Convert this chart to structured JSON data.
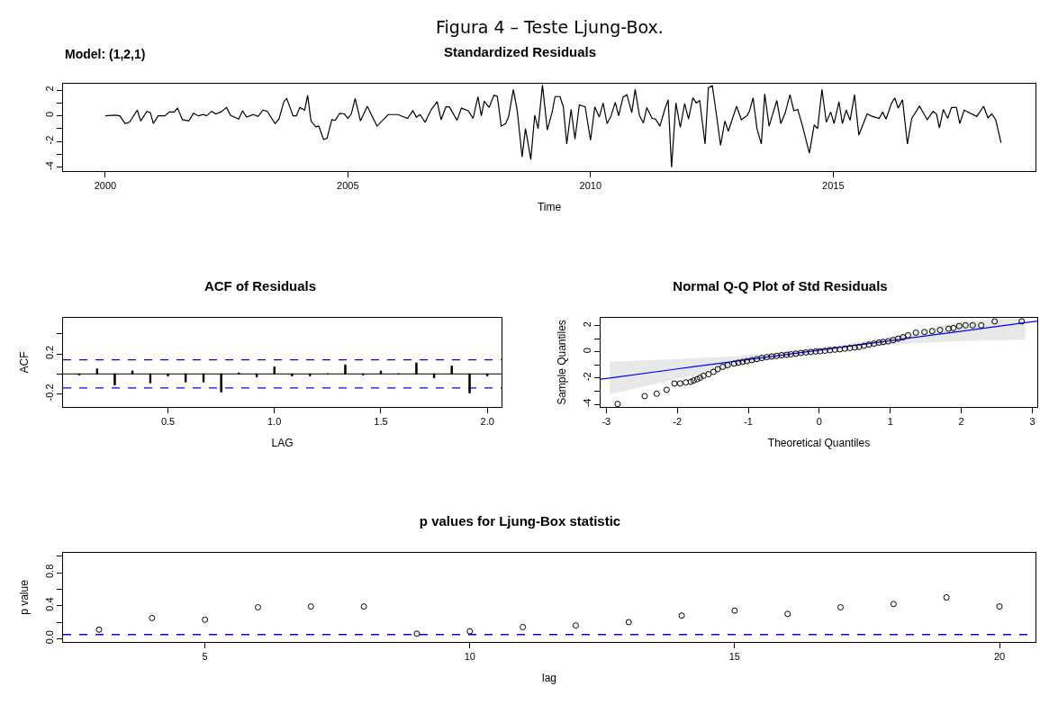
{
  "chart_data": [
    {
      "type": "line",
      "title": "Standardized Residuals",
      "xlabel": "Time",
      "annotations": [
        "Figura 4 – Teste Ljung-Box.",
        "Model: (1,2,1)"
      ],
      "xlim": [
        1999.13,
        2019.17
      ],
      "xticks": [
        2000,
        2005,
        2010,
        2015
      ],
      "ylim": [
        -4.3,
        2.5
      ],
      "yticks": [
        -4,
        {
          "value": -3,
          "label": null
        },
        -2,
        {
          "value": -1,
          "label": null
        },
        0,
        {
          "value": 1,
          "label": null
        },
        2
      ],
      "grid": false,
      "marker": "none",
      "line_style": "solid",
      "series": [
        {
          "color": "#000000",
          "x": [
            2000.0,
            2000.2,
            2000.3,
            2000.41,
            2000.5,
            2000.66,
            2000.73,
            2000.86,
            2000.93,
            2000.99,
            2001.09,
            2001.23,
            2001.32,
            2001.42,
            2001.49,
            2001.59,
            2001.72,
            2001.82,
            2001.92,
            2002.02,
            2002.09,
            2002.19,
            2002.28,
            2002.38,
            2002.5,
            2002.58,
            2002.75,
            2002.83,
            2002.91,
            2003.05,
            2003.15,
            2003.25,
            2003.34,
            2003.5,
            2003.58,
            2003.68,
            2003.74,
            2003.87,
            2003.94,
            2004.01,
            2004.11,
            2004.17,
            2004.24,
            2004.34,
            2004.4,
            2004.5,
            2004.57,
            2004.67,
            2004.74,
            2004.83,
            2004.93,
            2005.0,
            2005.07,
            2005.15,
            2005.26,
            2005.4,
            2005.6,
            2005.83,
            2006.03,
            2006.23,
            2006.34,
            2006.41,
            2006.49,
            2006.59,
            2006.72,
            2006.84,
            2006.92,
            2007.02,
            2007.09,
            2007.25,
            2007.34,
            2007.48,
            2007.58,
            2007.68,
            2007.75,
            2007.81,
            2007.91,
            2008.01,
            2008.08,
            2008.16,
            2008.25,
            2008.31,
            2008.41,
            2008.49,
            2008.59,
            2008.66,
            2008.77,
            2008.85,
            2008.92,
            2009.01,
            2009.11,
            2009.21,
            2009.27,
            2009.37,
            2009.44,
            2009.51,
            2009.6,
            2009.68,
            2009.77,
            2009.89,
            2010.0,
            2010.09,
            2010.18,
            2010.26,
            2010.34,
            2010.42,
            2010.51,
            2010.58,
            2010.67,
            2010.75,
            2010.85,
            2010.92,
            2011.01,
            2011.09,
            2011.16,
            2011.27,
            2011.34,
            2011.43,
            2011.53,
            2011.6,
            2011.67,
            2011.76,
            2011.85,
            2011.94,
            2012.02,
            2012.11,
            2012.18,
            2012.25,
            2012.36,
            2012.43,
            2012.51,
            2012.58,
            2012.68,
            2012.77,
            2012.84,
            2013.01,
            2013.11,
            2013.22,
            2013.27,
            2013.35,
            2013.43,
            2013.52,
            2013.59,
            2013.68,
            2013.84,
            2013.92,
            2014.01,
            2014.11,
            2014.19,
            2014.27,
            2014.37,
            2014.51,
            2014.61,
            2014.68,
            2014.77,
            2014.86,
            2014.95,
            2015.02,
            2015.12,
            2015.19,
            2015.27,
            2015.35,
            2015.44,
            2015.53,
            2015.7,
            2015.81,
            2015.95,
            2016.02,
            2016.09,
            2016.2,
            2016.27,
            2016.34,
            2016.43,
            2016.53,
            2016.62,
            2016.78,
            2016.94,
            2017.06,
            2017.13,
            2017.19,
            2017.27,
            2017.36,
            2017.44,
            2017.54,
            2017.61,
            2017.7,
            2017.96,
            2018.1,
            2018.19,
            2018.27,
            2018.35,
            2018.46
          ],
          "values": [
            0,
            0.05,
            0,
            -0.6,
            -0.5,
            0.45,
            -0.4,
            0.35,
            0.25,
            -0.6,
            0,
            0,
            0.3,
            0.3,
            0.6,
            -0.3,
            -0.4,
            0.2,
            0,
            0.1,
            0,
            0.35,
            0.15,
            0.3,
            0.65,
            0.05,
            -0.25,
            0.4,
            -0.1,
            0.1,
            -0.05,
            0.45,
            0.35,
            -0.6,
            -0.25,
            1.1,
            1.35,
            0,
            0,
            0.65,
            0.45,
            1.6,
            -0.4,
            -0.85,
            -0.8,
            -1.85,
            -1.75,
            -0.3,
            -0.35,
            0.2,
            0.15,
            -0.2,
            0.15,
            1.35,
            -0.4,
            0.75,
            -0.8,
            0.1,
            0.1,
            -0.2,
            0.4,
            -0.1,
            0.1,
            -0.5,
            0.5,
            1.1,
            -0.3,
            0.7,
            0.7,
            -0.35,
            0.6,
            0.4,
            -0.2,
            1.5,
            0,
            1.15,
            0.65,
            1.6,
            1.5,
            -0.8,
            -0.6,
            -0.1,
            2.05,
            0.4,
            -3.2,
            -1.0,
            -3.4,
            0.05,
            -1.0,
            2.4,
            -1.1,
            0.3,
            1.5,
            1.5,
            0.7,
            -2.2,
            0.5,
            -1.8,
            0.85,
            0.7,
            -1.9,
            0.7,
            -0.1,
            1.0,
            -0.6,
            -0.05,
            1.05,
            0,
            1.45,
            1.65,
            0.25,
            2.05,
            0,
            -0.55,
            0.65,
            -0.2,
            -0.25,
            -0.8,
            0.5,
            1.25,
            -4.0,
            1.0,
            -0.9,
            0.95,
            -0.25,
            1.4,
            1.0,
            1.2,
            -2.2,
            2.2,
            2.35,
            0.5,
            -2.3,
            -0.4,
            -1.2,
            0.75,
            -0.3,
            0,
            0.3,
            1.4,
            -1.0,
            -2.2,
            1.7,
            -0.8,
            1.2,
            -0.6,
            0.2,
            1.65,
            0.4,
            0.5,
            -0.8,
            -2.9,
            -0.7,
            -1.0,
            2.05,
            -0.5,
            0.3,
            -0.6,
            1.1,
            -0.6,
            0.45,
            -0.35,
            1.65,
            -1.5,
            0.15,
            -0.05,
            -0.2,
            0.3,
            -0.25,
            0.95,
            1.4,
            0.6,
            1.25,
            -2.2,
            -0.2,
            0.75,
            -0.3,
            0.35,
            0.15,
            -0.95,
            0.5,
            -0.2,
            0.65,
            0.65,
            -0.6,
            0.45,
            -0.05,
            0.75,
            -0.15,
            0.15,
            -0.3,
            -2.1
          ]
        }
      ]
    },
    {
      "type": "bar",
      "title": "ACF of Residuals",
      "xlabel": "LAG",
      "ylabel": "ACF",
      "xlim": [
        0.007,
        2.067
      ],
      "xticks": [
        0.5,
        {
          "value": 1,
          "label": "1.0"
        },
        1.5,
        {
          "value": 2,
          "label": "2.0"
        }
      ],
      "ylim": [
        -0.33,
        0.56
      ],
      "yticks": [
        -0.2,
        {
          "value": 0,
          "label": null
        },
        0.2,
        {
          "value": 0.4,
          "label": null
        }
      ],
      "grid": false,
      "ref_lines": [
        {
          "axis": "y",
          "value": 0,
          "color": "#000000",
          "line_style": "solid"
        },
        {
          "axis": "y",
          "value": 0.14,
          "color": "#0000ff",
          "line_style": "dashed"
        },
        {
          "axis": "y",
          "value": -0.14,
          "color": "#0000ff",
          "line_style": "dashed"
        }
      ],
      "series": [
        {
          "color": "#000000",
          "x": [
            0.083,
            0.167,
            0.25,
            0.333,
            0.417,
            0.5,
            0.583,
            0.667,
            0.75,
            0.833,
            0.917,
            1.0,
            1.083,
            1.167,
            1.25,
            1.333,
            1.417,
            1.5,
            1.583,
            1.667,
            1.75,
            1.833,
            1.917,
            2.0
          ],
          "values": [
            -0.01,
            0.05,
            -0.11,
            0.03,
            -0.09,
            -0.02,
            -0.08,
            -0.08,
            -0.18,
            0.01,
            -0.03,
            0.07,
            -0.02,
            -0.02,
            0,
            0.09,
            -0.01,
            0.03,
            0,
            0.11,
            -0.04,
            0.08,
            -0.19,
            -0.02
          ]
        }
      ]
    },
    {
      "type": "scatter",
      "title": "Normal Q-Q Plot of Std Residuals",
      "xlabel": "Theoretical Quantiles",
      "ylabel": "Sample Quantiles",
      "xlim": [
        -3.08,
        3.07
      ],
      "xticks": [
        -3,
        -2,
        -1,
        0,
        1,
        2,
        3
      ],
      "ylim": [
        -4.2,
        2.6
      ],
      "yticks": [
        -4,
        {
          "value": -3,
          "label": null
        },
        -2,
        {
          "value": -1,
          "label": null
        },
        0,
        {
          "value": 1,
          "label": null
        },
        2
      ],
      "grid": false,
      "marker": "circle",
      "series": [
        {
          "type": "line",
          "marker": "none",
          "color": "#0000ff",
          "x": [
            -3.08,
            -2.95,
            -2,
            -1,
            0,
            1,
            2,
            2.9,
            3.07
          ],
          "values": [
            -2.08,
            -1.99,
            -1.3,
            -0.58,
            0.14,
            0.86,
            1.58,
            2.23,
            2.35
          ],
          "lower": [
            null,
            -3.24,
            -2.05,
            -0.88,
            -0.01,
            0.56,
            0.83,
            0.93,
            null
          ],
          "upper": [
            null,
            -0.74,
            -0.55,
            -0.28,
            0.29,
            1.16,
            2.33,
            2.6,
            null
          ]
        },
        {
          "color": "#000000",
          "x": [
            -2.84,
            -2.46,
            -2.29,
            -2.15,
            -2.04,
            -1.96,
            -1.88,
            -1.81,
            -1.77,
            -1.72,
            -1.68,
            -1.63,
            -1.56,
            -1.49,
            -1.43,
            -1.36,
            -1.29,
            -1.2,
            -1.14,
            -1.08,
            -1.02,
            -0.95,
            -0.88,
            -0.81,
            -0.74,
            -0.67,
            -0.6,
            -0.53,
            -0.46,
            -0.4,
            -0.33,
            -0.26,
            -0.19,
            -0.12,
            -0.05,
            0.01,
            0.08,
            0.15,
            0.22,
            0.29,
            0.36,
            0.43,
            0.5,
            0.56,
            0.63,
            0.7,
            0.77,
            0.84,
            0.9,
            0.97,
            1.04,
            1.11,
            1.18,
            1.25,
            1.36,
            1.48,
            1.59,
            1.7,
            1.82,
            1.89,
            1.97,
            2.06,
            2.16,
            2.28,
            2.47,
            2.85
          ],
          "values": [
            -3.97,
            -3.37,
            -3.19,
            -2.89,
            -2.41,
            -2.41,
            -2.33,
            -2.28,
            -2.18,
            -2.08,
            -1.97,
            -1.82,
            -1.7,
            -1.52,
            -1.32,
            -1.14,
            -1.01,
            -0.89,
            -0.82,
            -0.76,
            -0.7,
            -0.63,
            -0.55,
            -0.46,
            -0.4,
            -0.35,
            -0.3,
            -0.25,
            -0.22,
            -0.18,
            -0.13,
            -0.08,
            -0.04,
            0,
            0.03,
            0.05,
            0.09,
            0.13,
            0.17,
            0.2,
            0.25,
            0.3,
            0.34,
            0.38,
            0.47,
            0.56,
            0.63,
            0.71,
            0.76,
            0.81,
            0.9,
            1.01,
            1.12,
            1.27,
            1.47,
            1.52,
            1.59,
            1.67,
            1.77,
            1.82,
            1.97,
            2.03,
            2.03,
            2.03,
            2.33,
            2.33
          ]
        }
      ]
    },
    {
      "type": "scatter",
      "title": "p values for Ljung-Box statistic",
      "xlabel": "lag",
      "ylabel": "p value",
      "xlim": [
        2.32,
        20.68
      ],
      "xticks": [
        5,
        10,
        15,
        20
      ],
      "ylim": [
        -0.04,
        1.04
      ],
      "yticks": [
        {
          "value": 0,
          "label": "0.0"
        },
        {
          "value": 0.2,
          "label": null
        },
        0.4,
        {
          "value": 0.6,
          "label": null
        },
        0.8,
        {
          "value": 1.0,
          "label": null
        }
      ],
      "grid": false,
      "marker": "circle",
      "ref_lines": [
        {
          "axis": "y",
          "value": 0.05,
          "color": "#0000ff",
          "line_style": "dashed"
        }
      ],
      "series": [
        {
          "color": "#000000",
          "x": [
            3,
            4,
            5,
            6,
            7,
            8,
            9,
            10,
            11,
            12,
            13,
            14,
            15,
            16,
            17,
            18,
            19,
            20
          ],
          "values": [
            0.11,
            0.25,
            0.23,
            0.38,
            0.39,
            0.39,
            0.06,
            0.09,
            0.14,
            0.16,
            0.2,
            0.28,
            0.34,
            0.3,
            0.38,
            0.42,
            0.5,
            0.39
          ]
        }
      ]
    }
  ]
}
